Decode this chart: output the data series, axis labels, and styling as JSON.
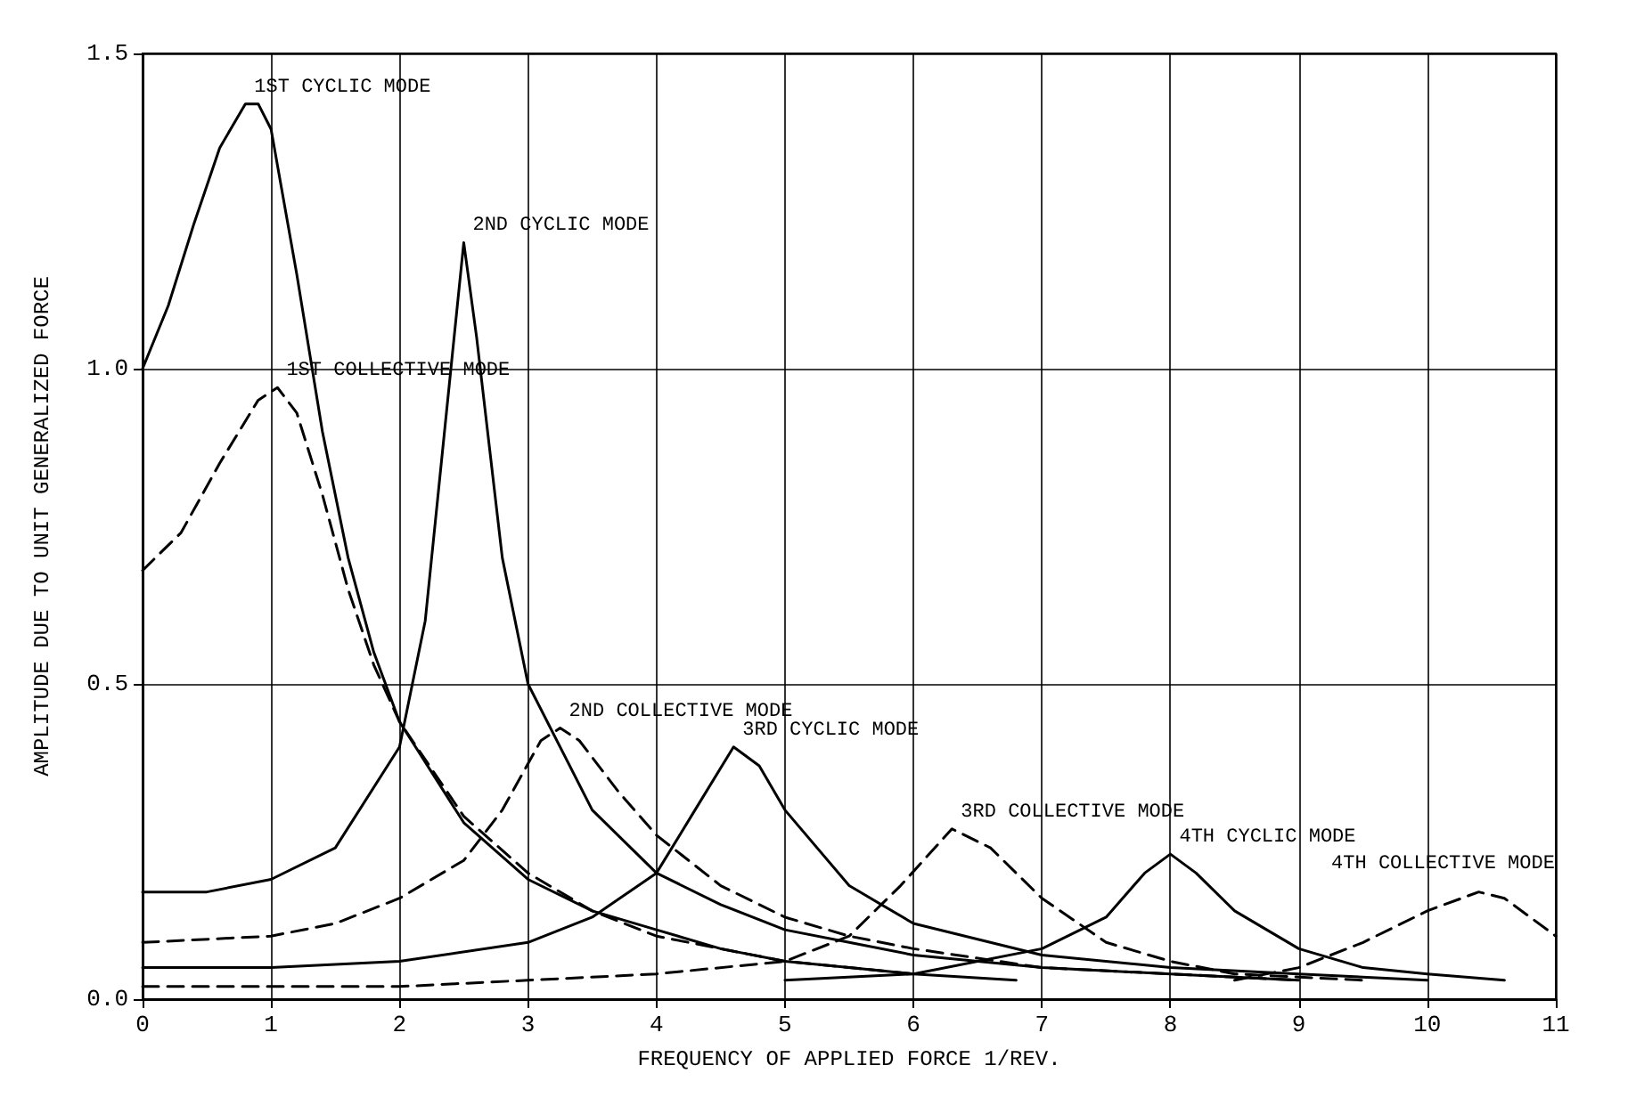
{
  "chart_data": {
    "type": "line",
    "xlabel": "FREQUENCY OF APPLIED FORCE 1/REV.",
    "ylabel": "AMPLITUDE DUE TO UNIT GENERALIZED FORCE",
    "xlim": [
      0,
      11
    ],
    "xticks": [
      0,
      1,
      2,
      3,
      4,
      5,
      6,
      7,
      8,
      9,
      10,
      11
    ],
    "ylim": [
      0,
      1.5
    ],
    "yticks": [
      {
        "value": 0,
        "label": "0.0"
      },
      {
        "value": 0.5,
        "label": "0.5"
      },
      {
        "value": 1,
        "label": "1.0"
      },
      {
        "value": 1.5,
        "label": "1.5"
      }
    ],
    "grid": true,
    "legend": false,
    "marker": "none",
    "series": [
      {
        "name": "1ST CYCLIC MODE",
        "color": "#000000",
        "line_style": "solid",
        "x": [
          0,
          0.2,
          0.4,
          0.6,
          0.8,
          0.9,
          1.0,
          1.2,
          1.4,
          1.6,
          1.8,
          2.0,
          2.5,
          3,
          3.5,
          4,
          4.5,
          5,
          5.5,
          6,
          6.8
        ],
        "values": [
          1.0,
          1.1,
          1.23,
          1.35,
          1.42,
          1.42,
          1.38,
          1.15,
          0.9,
          0.7,
          0.55,
          0.44,
          0.28,
          0.19,
          0.14,
          0.11,
          0.08,
          0.06,
          0.05,
          0.04,
          0.03
        ]
      },
      {
        "name": "1ST COLLECTIVE MODE",
        "color": "#000000",
        "line_style": "dashed",
        "x": [
          0,
          0.3,
          0.6,
          0.9,
          1.05,
          1.2,
          1.4,
          1.6,
          1.8,
          2,
          2.5,
          3,
          3.5,
          4,
          4.5,
          5,
          5.5,
          6
        ],
        "values": [
          0.68,
          0.74,
          0.85,
          0.95,
          0.97,
          0.93,
          0.8,
          0.65,
          0.53,
          0.44,
          0.29,
          0.2,
          0.14,
          0.1,
          0.08,
          0.06,
          0.05,
          0.04
        ]
      },
      {
        "name": "2ND CYCLIC MODE",
        "color": "#000000",
        "line_style": "solid",
        "x": [
          0,
          0.5,
          1,
          1.5,
          2,
          2.2,
          2.4,
          2.5,
          2.6,
          2.8,
          3,
          3.5,
          4,
          4.5,
          5,
          5.5,
          6,
          7,
          8,
          9
        ],
        "values": [
          0.17,
          0.17,
          0.19,
          0.24,
          0.4,
          0.6,
          1.0,
          1.2,
          1.05,
          0.7,
          0.5,
          0.3,
          0.2,
          0.15,
          0.11,
          0.09,
          0.07,
          0.05,
          0.04,
          0.03
        ]
      },
      {
        "name": "2ND COLLECTIVE MODE",
        "color": "#000000",
        "line_style": "dashed",
        "x": [
          0,
          1,
          1.5,
          2,
          2.5,
          2.8,
          3.1,
          3.25,
          3.4,
          3.7,
          4,
          4.5,
          5,
          5.5,
          6,
          7,
          8,
          9
        ],
        "values": [
          0.09,
          0.1,
          0.12,
          0.16,
          0.22,
          0.3,
          0.41,
          0.43,
          0.41,
          0.33,
          0.26,
          0.18,
          0.13,
          0.1,
          0.08,
          0.05,
          0.04,
          0.03
        ]
      },
      {
        "name": "3RD CYCLIC MODE",
        "color": "#000000",
        "line_style": "solid",
        "x": [
          0,
          1,
          2,
          3,
          3.5,
          4,
          4.3,
          4.6,
          4.8,
          5,
          5.5,
          6,
          7,
          8,
          9,
          10
        ],
        "values": [
          0.05,
          0.05,
          0.06,
          0.09,
          0.13,
          0.2,
          0.3,
          0.4,
          0.37,
          0.3,
          0.18,
          0.12,
          0.07,
          0.05,
          0.04,
          0.03
        ]
      },
      {
        "name": "3RD COLLECTIVE MODE",
        "color": "#000000",
        "line_style": "dashed",
        "x": [
          0,
          2,
          3,
          4,
          5,
          5.5,
          5.9,
          6.3,
          6.6,
          7,
          7.5,
          8,
          8.5,
          9.5
        ],
        "values": [
          0.02,
          0.02,
          0.03,
          0.04,
          0.06,
          0.1,
          0.18,
          0.27,
          0.24,
          0.16,
          0.09,
          0.06,
          0.04,
          0.03
        ]
      },
      {
        "name": "4TH CYCLIC MODE",
        "color": "#000000",
        "line_style": "solid",
        "x": [
          5,
          6,
          7,
          7.5,
          7.8,
          8,
          8.2,
          8.5,
          9,
          9.5,
          10,
          10.6
        ],
        "values": [
          0.03,
          0.04,
          0.08,
          0.13,
          0.2,
          0.23,
          0.2,
          0.14,
          0.08,
          0.05,
          0.04,
          0.03
        ]
      },
      {
        "name": "4TH COLLECTIVE MODE",
        "color": "#000000",
        "line_style": "dashed",
        "x": [
          8.5,
          9,
          9.5,
          10,
          10.4,
          10.6,
          10.8,
          11
        ],
        "values": [
          0.03,
          0.05,
          0.09,
          0.14,
          0.17,
          0.16,
          0.13,
          0.1
        ]
      }
    ]
  }
}
